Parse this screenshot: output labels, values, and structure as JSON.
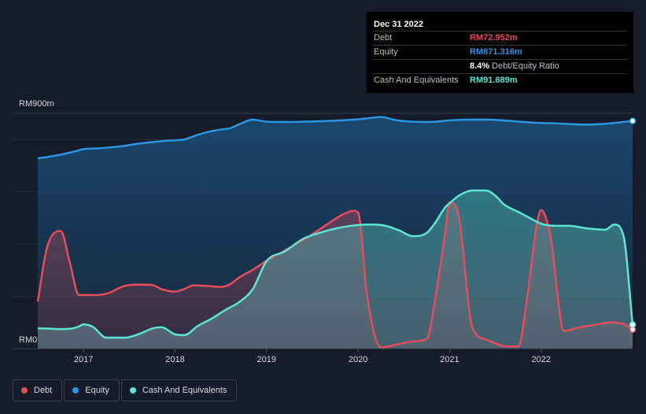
{
  "tooltip": {
    "date": "Dec 31 2022",
    "rows": [
      {
        "label": "Debt",
        "value": "RM72.952m",
        "color": "#e64d5c"
      },
      {
        "label": "Equity",
        "value": "RM871.316m",
        "color": "#2b95e0"
      },
      {
        "label": "Cash And Equivalents",
        "value": "RM91.689m",
        "color": "#5ee4d2"
      }
    ],
    "ratio_value": "8.4%",
    "ratio_label": "Debt/Equity Ratio"
  },
  "colors": {
    "background": "#151b2a",
    "debt": "#e64d5c",
    "equity": "#2b95e0",
    "cash": "#5ee4d2"
  },
  "legend": [
    {
      "key": "debt",
      "label": "Debt",
      "color": "#e64d5c"
    },
    {
      "key": "equity",
      "label": "Equity",
      "color": "#2b95e0"
    },
    {
      "key": "cash",
      "label": "Cash And Equivalents",
      "color": "#5ee4d2"
    }
  ],
  "chart_data": {
    "type": "area",
    "title": "",
    "xlabel": "",
    "ylabel": "",
    "x_range": [
      2016.5,
      2023.0
    ],
    "ylim": [
      0,
      900
    ],
    "y_tick_labels": [
      {
        "value": 900,
        "label": "RM900m"
      },
      {
        "value": 0,
        "label": "RM0"
      }
    ],
    "x_ticks": [
      2017,
      2018,
      2019,
      2020,
      2021,
      2022
    ],
    "x_tick_labels": [
      "2017",
      "2018",
      "2019",
      "2020",
      "2021",
      "2022"
    ],
    "series": [
      {
        "name": "Debt",
        "key": "debt",
        "x": [
          2016.5,
          2016.6,
          2016.75,
          2016.85,
          2016.95,
          2017.1,
          2017.25,
          2017.45,
          2017.6,
          2017.75,
          2017.85,
          2018.0,
          2018.1,
          2018.2,
          2018.35,
          2018.5,
          2018.6,
          2018.7,
          2018.85,
          2019.0,
          2019.15,
          2019.3,
          2019.45,
          2019.6,
          2019.75,
          2019.85,
          2019.95,
          2020.0,
          2020.1,
          2020.25,
          2020.45,
          2020.6,
          2020.75,
          2020.85,
          2020.95,
          2021.0,
          2021.1,
          2021.25,
          2021.4,
          2021.6,
          2021.75,
          2021.85,
          2021.95,
          2022.0,
          2022.1,
          2022.25,
          2022.4,
          2022.6,
          2022.75,
          2022.9,
          2023.0
        ],
        "values": [
          180,
          385,
          450,
          330,
          205,
          205,
          210,
          240,
          245,
          244,
          228,
          218,
          228,
          242,
          240,
          236,
          246,
          272,
          302,
          336,
          366,
          396,
          426,
          461,
          496,
          516,
          527,
          521,
          200,
          5,
          18,
          28,
          38,
          205,
          440,
          560,
          505,
          80,
          35,
          10,
          8,
          200,
          470,
          530,
          435,
          68,
          80,
          92,
          100,
          94,
          73
        ]
      },
      {
        "name": "Equity",
        "key": "equity",
        "x": [
          2016.5,
          2016.6,
          2016.75,
          2016.9,
          2017.0,
          2017.15,
          2017.3,
          2017.45,
          2017.6,
          2017.75,
          2017.9,
          2018.0,
          2018.1,
          2018.25,
          2018.4,
          2018.5,
          2018.6,
          2018.7,
          2018.85,
          2019.0,
          2019.2,
          2019.4,
          2019.6,
          2019.8,
          2020.0,
          2020.1,
          2020.25,
          2020.4,
          2020.55,
          2020.7,
          2020.85,
          2021.0,
          2021.2,
          2021.4,
          2021.55,
          2021.7,
          2021.85,
          2022.0,
          2022.15,
          2022.3,
          2022.5,
          2022.7,
          2022.85,
          2023.0
        ],
        "values": [
          728,
          733,
          742,
          754,
          763,
          766,
          770,
          776,
          784,
          790,
          795,
          797,
          800,
          818,
          832,
          838,
          843,
          858,
          876,
          868,
          867,
          868,
          870,
          873,
          877,
          881,
          886,
          875,
          869,
          867,
          868,
          873,
          876,
          876,
          874,
          870,
          866,
          863,
          862,
          859,
          857,
          860,
          865,
          871
        ]
      },
      {
        "name": "Cash And Equivalents",
        "key": "cash",
        "x": [
          2016.5,
          2016.6,
          2016.75,
          2016.85,
          2016.95,
          2017.0,
          2017.1,
          2017.25,
          2017.45,
          2017.6,
          2017.75,
          2017.85,
          2018.0,
          2018.1,
          2018.25,
          2018.4,
          2018.55,
          2018.7,
          2018.85,
          2019.0,
          2019.2,
          2019.4,
          2019.6,
          2019.8,
          2020.0,
          2020.15,
          2020.3,
          2020.45,
          2020.6,
          2020.75,
          2020.85,
          2020.95,
          2021.0,
          2021.1,
          2021.25,
          2021.4,
          2021.5,
          2021.6,
          2021.75,
          2021.85,
          2022.0,
          2022.15,
          2022.3,
          2022.5,
          2022.7,
          2022.8,
          2022.9,
          2023.0
        ],
        "values": [
          78,
          77,
          75,
          76,
          85,
          93,
          84,
          42,
          42,
          55,
          77,
          82,
          55,
          52,
          87,
          115,
          148,
          178,
          228,
          335,
          372,
          420,
          445,
          463,
          473,
          475,
          470,
          452,
          430,
          443,
          485,
          540,
          556,
          585,
          605,
          605,
          585,
          550,
          523,
          505,
          478,
          470,
          470,
          460,
          455,
          475,
          432,
          91.689
        ]
      }
    ],
    "hover_x": 2023.0
  }
}
